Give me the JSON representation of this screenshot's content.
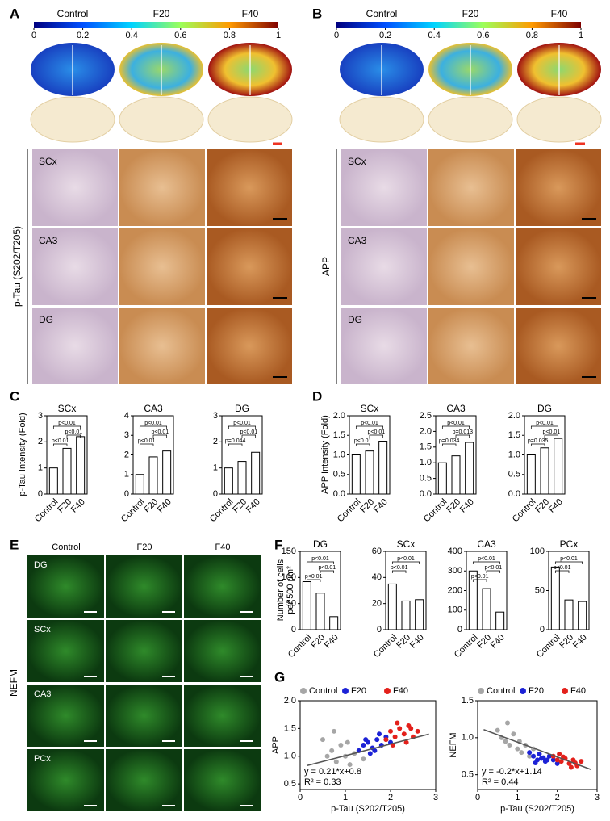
{
  "panels": {
    "A": {
      "letter": "A",
      "colorbar_ticks": [
        0,
        0.2,
        0.4,
        0.6,
        0.8,
        1
      ],
      "columns": [
        "Control",
        "F20",
        "F40"
      ],
      "regions": [
        "SCx",
        "CA3",
        "DG"
      ],
      "side_label": "p-Tau (S202/T205)"
    },
    "B": {
      "letter": "B",
      "colorbar_ticks": [
        0,
        0.2,
        0.4,
        0.6,
        0.8,
        1
      ],
      "columns": [
        "Control",
        "F20",
        "F40"
      ],
      "regions": [
        "SCx",
        "CA3",
        "DG"
      ],
      "side_label": "APP"
    },
    "C": {
      "letter": "C"
    },
    "D": {
      "letter": "D"
    },
    "E": {
      "letter": "E",
      "columns": [
        "Control",
        "F20",
        "F40"
      ],
      "regions": [
        "DG",
        "SCx",
        "CA3",
        "PCx"
      ],
      "side_label": "NEFM"
    },
    "F": {
      "letter": "F"
    },
    "G": {
      "letter": "G"
    }
  },
  "chart_data": [
    {
      "type": "bar",
      "title": "SCx",
      "ylabel": "p-Tau Intensity (Fold)",
      "categories": [
        "Control",
        "F20",
        "F40"
      ],
      "values": [
        1.0,
        1.75,
        2.2
      ],
      "ylim": [
        0,
        3
      ],
      "yticks": [
        0,
        1,
        2,
        3
      ],
      "annotations": [
        "p<0.01",
        "p<0.01",
        "p<0.01"
      ]
    },
    {
      "type": "bar",
      "title": "CA3",
      "categories": [
        "Control",
        "F20",
        "F40"
      ],
      "values": [
        1.0,
        1.9,
        2.2
      ],
      "ylim": [
        0,
        4
      ],
      "yticks": [
        0,
        1,
        2,
        3,
        4
      ],
      "annotations": [
        "p<0.01",
        "p<0.01",
        "p<0.01"
      ]
    },
    {
      "type": "bar",
      "title": "DG",
      "categories": [
        "Control",
        "F20",
        "F40"
      ],
      "values": [
        1.0,
        1.25,
        1.6
      ],
      "ylim": [
        0,
        3
      ],
      "yticks": [
        0,
        1,
        2,
        3
      ],
      "annotations": [
        "p=0.044",
        "p<0.01",
        "p<0.01"
      ]
    },
    {
      "type": "bar",
      "title": "SCx",
      "ylabel": "APP Intensity (Fold)",
      "categories": [
        "Control",
        "F20",
        "F40"
      ],
      "values": [
        1.0,
        1.1,
        1.35
      ],
      "ylim": [
        0,
        2
      ],
      "yticks": [
        {
          "value": 0,
          "label": "0.0"
        },
        0.5,
        {
          "value": 1,
          "label": "1.0"
        },
        1.5,
        {
          "value": 2,
          "label": "2.0"
        }
      ],
      "annotations": [
        "p<0.01",
        "p<0.01",
        "p<0.01"
      ]
    },
    {
      "type": "bar",
      "title": "CA3",
      "categories": [
        "Control",
        "F20",
        "F40"
      ],
      "values": [
        1.0,
        1.22,
        1.65
      ],
      "ylim": [
        0,
        2.5
      ],
      "yticks": [
        {
          "value": 0,
          "label": "0.0"
        },
        0.5,
        {
          "value": 1,
          "label": "1.0"
        },
        1.5,
        {
          "value": 2,
          "label": "2.0"
        },
        2.5
      ],
      "annotations": [
        "p=0.034",
        "p=0.013",
        "p<0.01"
      ]
    },
    {
      "type": "bar",
      "title": "DG",
      "categories": [
        "Control",
        "F20",
        "F40"
      ],
      "values": [
        1.0,
        1.18,
        1.42
      ],
      "ylim": [
        0,
        2
      ],
      "yticks": [
        {
          "value": 0,
          "label": "0.0"
        },
        0.5,
        {
          "value": 1,
          "label": "1.0"
        },
        1.5,
        {
          "value": 2,
          "label": "2.0"
        }
      ],
      "annotations": [
        "p=0.035",
        "p<0.01",
        "p<0.01"
      ]
    },
    {
      "type": "bar",
      "title": "DG",
      "ylabel": [
        "Number of cells",
        "per 500 μm²"
      ],
      "categories": [
        "Control",
        "F20",
        "F40"
      ],
      "values": [
        92,
        70,
        25
      ],
      "ylim": [
        0,
        150
      ],
      "yticks": [
        0,
        50,
        100,
        150
      ],
      "annotations": [
        "p<0.01",
        "p<0.01",
        "p<0.01"
      ]
    },
    {
      "type": "bar",
      "title": "SCx",
      "categories": [
        "Control",
        "F20",
        "F40"
      ],
      "values": [
        35,
        22,
        23
      ],
      "ylim": [
        0,
        60
      ],
      "yticks": [
        0,
        20,
        40,
        60
      ],
      "annotations": [
        "p<0.01",
        "p<0.01"
      ]
    },
    {
      "type": "bar",
      "title": "CA3",
      "categories": [
        "Control",
        "F20",
        "F40"
      ],
      "values": [
        300,
        210,
        90
      ],
      "ylim": [
        0,
        400
      ],
      "yticks": [
        0,
        100,
        200,
        300,
        400
      ],
      "annotations": [
        "p<0.01",
        "p<0.01",
        "p<0.01"
      ]
    },
    {
      "type": "bar",
      "title": "PCx",
      "categories": [
        "Control",
        "F20",
        "F40"
      ],
      "values": [
        80,
        38,
        36
      ],
      "ylim": [
        0,
        100
      ],
      "yticks": [
        0,
        50,
        100
      ],
      "annotations": [
        "p<0.01",
        "p<0.01"
      ]
    },
    {
      "type": "scatter",
      "xlabel": "p-Tau (S202/T205)",
      "ylabel": "APP",
      "xlim": [
        0,
        3
      ],
      "xticks": [
        0,
        1,
        2,
        3
      ],
      "ylim": [
        0.4,
        2
      ],
      "yticks": [
        0.5,
        {
          "value": 1,
          "label": "1.0"
        },
        1.5,
        {
          "value": 2,
          "label": "2.0"
        }
      ],
      "trend": {
        "slope": 0.21,
        "intercept": 0.8,
        "label": "y = 0.21*x+0.8"
      },
      "r2_label": "R² = 0.33",
      "series": [
        {
          "name": "Control",
          "color": "#a6a6a6",
          "x": [
            0.5,
            0.6,
            0.7,
            0.8,
            0.9,
            1.0,
            1.1,
            1.2,
            1.3,
            1.4,
            0.75,
            1.05
          ],
          "values": [
            1.3,
            1.0,
            1.1,
            0.9,
            1.2,
            1.0,
            0.85,
            1.05,
            1.1,
            0.95,
            1.45,
            1.25
          ]
        },
        {
          "name": "F20",
          "color": "#1c22d6",
          "x": [
            1.3,
            1.4,
            1.5,
            1.6,
            1.7,
            1.8,
            1.9,
            2.0,
            1.55,
            1.75,
            1.65,
            1.45
          ],
          "values": [
            1.1,
            1.2,
            1.25,
            1.15,
            1.3,
            1.2,
            1.35,
            1.25,
            1.05,
            1.4,
            1.1,
            1.3
          ]
        },
        {
          "name": "F40",
          "color": "#e3201b",
          "x": [
            1.9,
            2.0,
            2.1,
            2.2,
            2.3,
            2.4,
            2.5,
            2.6,
            2.15,
            2.35,
            2.05,
            2.45
          ],
          "values": [
            1.3,
            1.45,
            1.35,
            1.5,
            1.4,
            1.55,
            1.35,
            1.45,
            1.6,
            1.25,
            1.2,
            1.5
          ]
        }
      ]
    },
    {
      "type": "scatter",
      "xlabel": "p-Tau (S202/T205)",
      "ylabel": "NEFM",
      "xlim": [
        0,
        3
      ],
      "xticks": [
        0,
        1,
        2,
        3
      ],
      "ylim": [
        0.3,
        1.5
      ],
      "yticks": [
        0.5,
        {
          "value": 1,
          "label": "1.0"
        },
        1.5
      ],
      "trend": {
        "slope": -0.2,
        "intercept": 1.14,
        "label": "y = -0.2*x+1.14"
      },
      "r2_label": "R² = 0.44",
      "series": [
        {
          "name": "Control",
          "color": "#a6a6a6",
          "x": [
            0.5,
            0.6,
            0.7,
            0.8,
            0.9,
            1.0,
            1.1,
            1.2,
            1.3,
            1.4,
            0.75,
            1.05
          ],
          "values": [
            1.1,
            1.0,
            0.95,
            0.9,
            1.05,
            0.85,
            0.8,
            0.9,
            0.75,
            0.85,
            1.2,
            0.95
          ]
        },
        {
          "name": "F20",
          "color": "#1c22d6",
          "x": [
            1.3,
            1.4,
            1.5,
            1.6,
            1.7,
            1.8,
            1.9,
            2.0,
            1.55,
            1.75,
            1.65,
            1.45
          ],
          "values": [
            0.8,
            0.75,
            0.7,
            0.72,
            0.68,
            0.75,
            0.7,
            0.65,
            0.78,
            0.7,
            0.73,
            0.66
          ]
        },
        {
          "name": "F40",
          "color": "#e3201b",
          "x": [
            1.9,
            2.0,
            2.1,
            2.2,
            2.3,
            2.4,
            2.5,
            2.6,
            2.15,
            2.35,
            2.05,
            2.45
          ],
          "values": [
            0.75,
            0.7,
            0.68,
            0.72,
            0.65,
            0.7,
            0.62,
            0.68,
            0.74,
            0.6,
            0.78,
            0.66
          ]
        }
      ]
    }
  ]
}
